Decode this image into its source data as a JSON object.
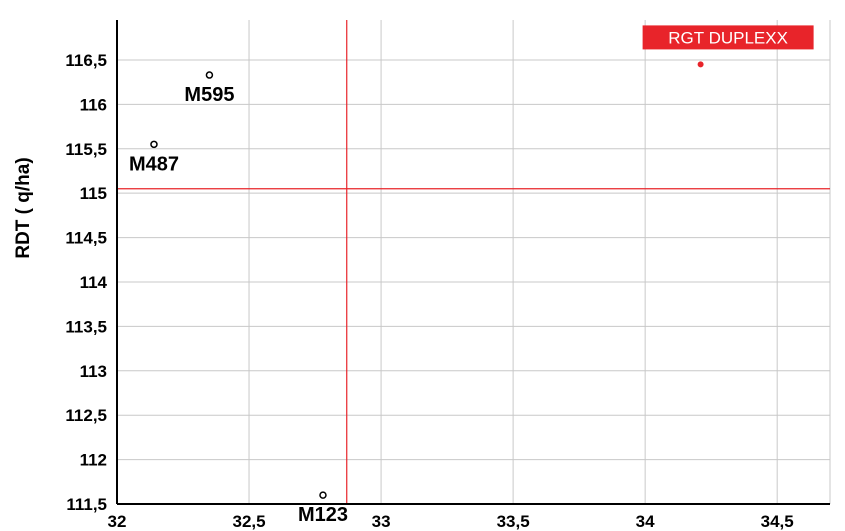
{
  "chart_data": {
    "type": "scatter",
    "title": "",
    "xlabel": "",
    "ylabel": "RDT ( q/ha)",
    "xlim": [
      32,
      34.7
    ],
    "ylim": [
      111.5,
      116.95
    ],
    "xticks": [
      32,
      32.5,
      33,
      33.5,
      34,
      34.5
    ],
    "xtick_labels": [
      "32",
      "32,5",
      "33",
      "33,5",
      "34",
      "34,5"
    ],
    "yticks": [
      111.5,
      112,
      112.5,
      113,
      113.5,
      114,
      114.5,
      115,
      115.5,
      116,
      116.5
    ],
    "ytick_labels": [
      "111,5",
      "112",
      "112,5",
      "113",
      "113,5",
      "114",
      "114,5",
      "115",
      "115,5",
      "116",
      "116,5"
    ],
    "grid": true,
    "reference_lines": {
      "x": 32.87,
      "y": 115.05,
      "color": "#e8242a"
    },
    "points": [
      {
        "label": "M595",
        "x": 32.35,
        "y": 116.33,
        "highlight": false
      },
      {
        "label": "M487",
        "x": 32.14,
        "y": 115.55,
        "highlight": false
      },
      {
        "label": "M123",
        "x": 32.78,
        "y": 111.6,
        "highlight": false
      },
      {
        "label": "RGT DUPLEXX",
        "x": 34.21,
        "y": 116.45,
        "highlight": true
      }
    ],
    "colors": {
      "highlight": "#e8242a",
      "grid": "#c8c8c8",
      "axis": "#000000"
    }
  }
}
